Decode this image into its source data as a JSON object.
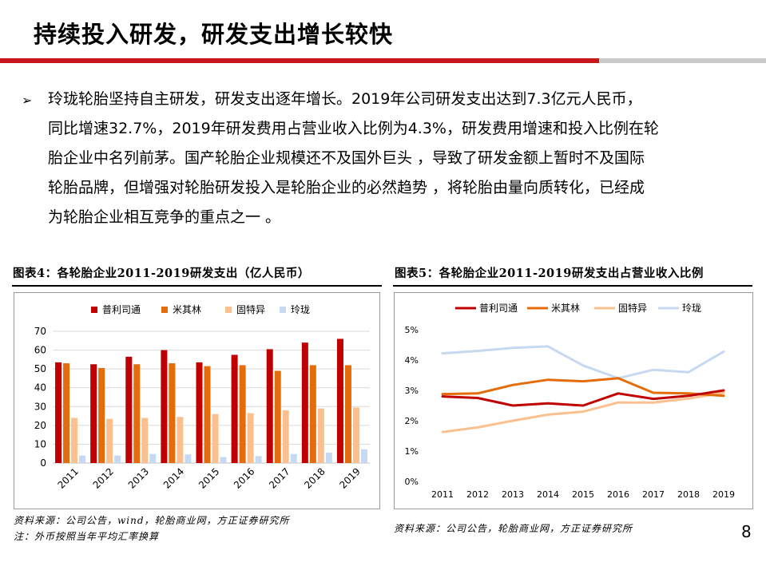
{
  "slide": {
    "title": "持续投入研发，研发支出增长较快",
    "bullet_symbol": "➢",
    "paragraph_lines": [
      "玲珑轮胎坚持自主研发，研发支出逐年增长。2019年公司研发支出达到7.3亿元人民币，",
      "同比增速32.7%，2019年研发费用占营业收入比例为4.3%，研发费用增速和投入比例在轮",
      "胎企业中名列前茅。国产轮胎企业规模还不及国外巨头 ，导致了研发金额上暂时不及国际",
      "轮胎品牌，但增强对轮胎研发投入是轮胎企业的必然趋势 ，将轮胎由量向质转化，已经成",
      "为轮胎企业相互竞争的重点之一 。"
    ],
    "page_number": "8"
  },
  "figure4": {
    "caption": "图表4：各轮胎企业2011-2019研发支出（亿人民币）",
    "source_lines": [
      "资料来源：公司公告，wind，轮胎商业网，方正证券研究所",
      "注：外币按照当年平均汇率换算"
    ]
  },
  "figure5": {
    "caption": "图表5：各轮胎企业2011-2019研发支出占营业收入比例",
    "source_lines": [
      "资料来源：公司公告，轮胎商业网，方正证券研究所"
    ]
  },
  "colors": {
    "accent_red": "#c8161d",
    "pirelli": "#c00000",
    "michelin": "#e46c0a",
    "goodyear": "#fac090",
    "linglong": "#c6d9f1"
  },
  "chart_data": [
    {
      "type": "bar",
      "categories": [
        "2011",
        "2012",
        "2013",
        "2014",
        "2015",
        "2016",
        "2017",
        "2018",
        "2019"
      ],
      "series": [
        {
          "name": "普利司通",
          "values": [
            53.5,
            52.5,
            56.5,
            60,
            53.5,
            57.5,
            60.5,
            64,
            66
          ]
        },
        {
          "name": "米其林",
          "values": [
            53,
            50.5,
            52.5,
            53,
            51.5,
            52,
            49,
            52,
            52
          ]
        },
        {
          "name": "固特异",
          "values": [
            24,
            23.5,
            24,
            24.5,
            26,
            26.5,
            28,
            29,
            29.5
          ]
        },
        {
          "name": "玲珑",
          "values": [
            4,
            4,
            4.8,
            4.6,
            3.2,
            3.7,
            4.8,
            5.5,
            7.3
          ]
        }
      ],
      "ylim": [
        0,
        70
      ],
      "yticks": [
        "0",
        "10",
        "20",
        "30",
        "40",
        "50",
        "60",
        "70"
      ],
      "legend": "top",
      "grid": true
    },
    {
      "type": "line",
      "categories": [
        "2011",
        "2012",
        "2013",
        "2014",
        "2015",
        "2016",
        "2017",
        "2018",
        "2019"
      ],
      "series": [
        {
          "name": "普利司通",
          "values": [
            2.8,
            2.75,
            2.5,
            2.57,
            2.5,
            2.9,
            2.72,
            2.82,
            3.0
          ]
        },
        {
          "name": "米其林",
          "values": [
            2.88,
            2.9,
            3.18,
            3.35,
            3.3,
            3.4,
            2.92,
            2.9,
            2.82
          ]
        },
        {
          "name": "固特异",
          "values": [
            1.63,
            1.78,
            2.0,
            2.2,
            2.3,
            2.6,
            2.6,
            2.73,
            2.92
          ]
        },
        {
          "name": "玲珑",
          "values": [
            4.22,
            4.3,
            4.4,
            4.45,
            3.82,
            3.4,
            3.68,
            3.6,
            4.28
          ]
        }
      ],
      "ylim": [
        0,
        5
      ],
      "yticks": [
        "0%",
        "1%",
        "2%",
        "3%",
        "4%",
        "5%"
      ],
      "legend": "top",
      "grid": false
    }
  ]
}
